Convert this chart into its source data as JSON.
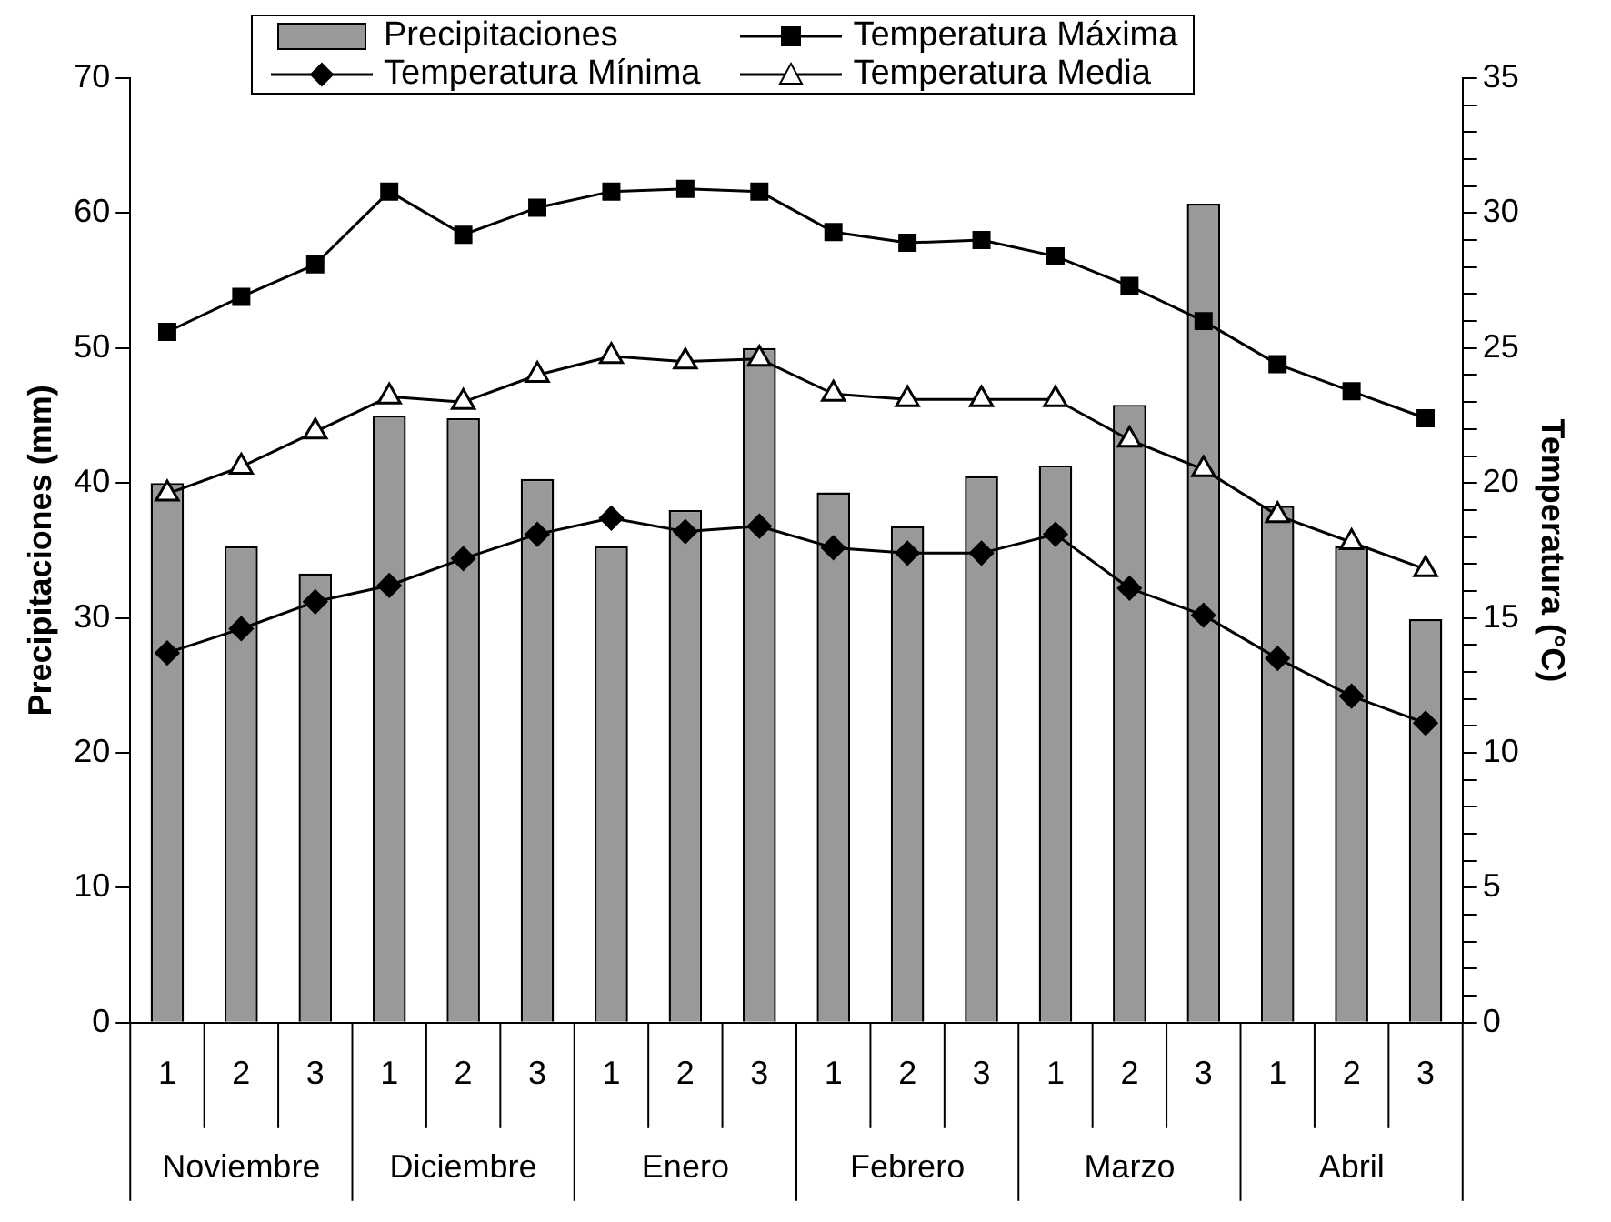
{
  "chart_data": {
    "type": "bar",
    "categories": [
      "1",
      "2",
      "3",
      "1",
      "2",
      "3",
      "1",
      "2",
      "3",
      "1",
      "2",
      "3",
      "1",
      "2",
      "3",
      "1",
      "2",
      "3"
    ],
    "annotations": [
      "Noviembre",
      "Diciembre",
      "Enero",
      "Febrero",
      "Marzo",
      "Abril"
    ],
    "ylabel": "Precipitaciones (mm)",
    "y2label": "Temperatura (°C)",
    "ylim": [
      0,
      70
    ],
    "yticks": [
      0,
      10,
      20,
      30,
      40,
      50,
      60,
      70
    ],
    "y2lim": [
      0,
      35
    ],
    "y2ticks": [
      0,
      {
        "value": 1,
        "label": null
      },
      {
        "value": 2,
        "label": null
      },
      {
        "value": 3,
        "label": null
      },
      {
        "value": 4,
        "label": null
      },
      5,
      {
        "value": 6,
        "label": null
      },
      {
        "value": 7,
        "label": null
      },
      {
        "value": 8,
        "label": null
      },
      {
        "value": 9,
        "label": null
      },
      10,
      {
        "value": 11,
        "label": null
      },
      {
        "value": 12,
        "label": null
      },
      {
        "value": 13,
        "label": null
      },
      {
        "value": 14,
        "label": null
      },
      15,
      {
        "value": 16,
        "label": null
      },
      {
        "value": 17,
        "label": null
      },
      {
        "value": 18,
        "label": null
      },
      {
        "value": 19,
        "label": null
      },
      20,
      {
        "value": 21,
        "label": null
      },
      {
        "value": 22,
        "label": null
      },
      {
        "value": 23,
        "label": null
      },
      {
        "value": 24,
        "label": null
      },
      25,
      {
        "value": 26,
        "label": null
      },
      {
        "value": 27,
        "label": null
      },
      {
        "value": 28,
        "label": null
      },
      {
        "value": 29,
        "label": null
      },
      30,
      {
        "value": 31,
        "label": null
      },
      {
        "value": 32,
        "label": null
      },
      {
        "value": 33,
        "label": null
      },
      {
        "value": 34,
        "label": null
      },
      35
    ],
    "legend": "top",
    "grid": false,
    "series": [
      {
        "name": "Precipitaciones",
        "color": "#999999",
        "values": [
          40,
          35.3,
          33.3,
          45,
          44.8,
          40.3,
          35.3,
          38,
          50,
          39.3,
          36.8,
          40.5,
          41.3,
          45.8,
          60.7,
          38.3,
          35.3,
          29.9
        ]
      },
      {
        "name": "Temperatura Máxima",
        "type": "line",
        "axis": "y2",
        "color": "#000000",
        "marker": "square",
        "values": [
          25.6,
          26.9,
          28.1,
          30.8,
          29.2,
          30.2,
          30.8,
          30.9,
          30.8,
          29.3,
          28.9,
          29.0,
          28.4,
          27.3,
          26.0,
          24.4,
          23.4,
          22.4
        ]
      },
      {
        "name": "Temperatura Mínima",
        "type": "line",
        "axis": "y2",
        "color": "#000000",
        "marker": "diamond",
        "values": [
          13.7,
          14.6,
          15.6,
          16.2,
          17.2,
          18.1,
          18.7,
          18.2,
          18.4,
          17.6,
          17.4,
          17.4,
          18.1,
          16.1,
          15.1,
          13.5,
          12.1,
          11.1
        ]
      },
      {
        "name": "Temperatura Media",
        "type": "line",
        "axis": "y2",
        "color": "#000000",
        "marker": "triangle",
        "values": [
          19.6,
          20.6,
          21.9,
          23.2,
          23.0,
          24.0,
          24.7,
          24.5,
          24.6,
          23.3,
          23.1,
          23.1,
          23.1,
          21.6,
          20.5,
          18.8,
          17.8,
          16.8
        ]
      }
    ]
  }
}
